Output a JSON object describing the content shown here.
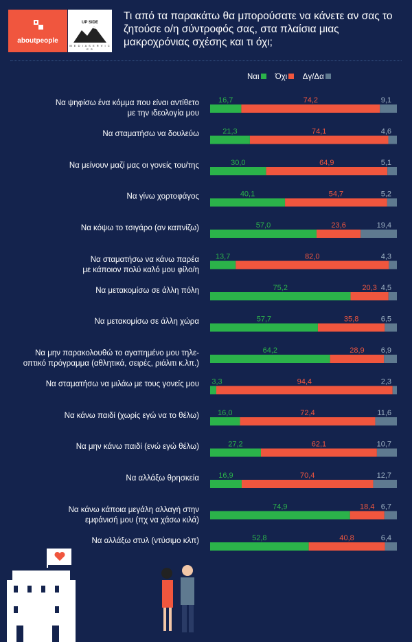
{
  "brand": {
    "about_part1": "about",
    "about_part2": "people",
    "partner_title": "UP SIDE",
    "partner_sub": "M E D I A   S E R V I C E S"
  },
  "title": "Τι από τα παρακάτω θα μπορούσατε να κάνετε αν σας το ζητούσε ο/η σύντροφός σας, στα πλαίσια μιας μακροχρόνιας σχέσης και τι όχι;",
  "colors": {
    "yes": "#2bb34a",
    "no": "#f0563e",
    "dk": "#5f7a90",
    "background": "#14234d"
  },
  "chart_data": {
    "type": "bar",
    "orientation": "horizontal",
    "stacked": true,
    "percent": true,
    "legend_position": "top-right",
    "series": [
      {
        "name": "Ναι",
        "values": [
          16.7,
          21.3,
          30.0,
          40.1,
          57.0,
          13.7,
          75.2,
          57.7,
          64.2,
          3.3,
          16.0,
          27.2,
          16.9,
          74.9,
          52.8
        ],
        "labels": [
          "16,7",
          "21,3",
          "30,0",
          "40,1",
          "57,0",
          "13,7",
          "75,2",
          "57,7",
          "64,2",
          "3,3",
          "16,0",
          "27,2",
          "16,9",
          "74,9",
          "52,8"
        ]
      },
      {
        "name": "Όχι",
        "values": [
          74.2,
          74.1,
          64.9,
          54.7,
          23.6,
          82.0,
          20.3,
          35.8,
          28.9,
          94.4,
          72.4,
          62.1,
          70.4,
          18.4,
          40.8
        ],
        "labels": [
          "74,2",
          "74,1",
          "64,9",
          "54,7",
          "23,6",
          "82,0",
          "20,3",
          "35,8",
          "28,9",
          "94,4",
          "72,4",
          "62,1",
          "70,4",
          "18,4",
          "40,8"
        ]
      },
      {
        "name": "Δγ/Δα",
        "values": [
          9.1,
          4.6,
          5.1,
          5.2,
          19.4,
          4.3,
          4.5,
          6.5,
          6.9,
          2.3,
          11.6,
          10.7,
          12.7,
          6.7,
          6.4
        ],
        "labels": [
          "9,1",
          "4,6",
          "5,1",
          "5,2",
          "19,4",
          "4,3",
          "4,5",
          "6,5",
          "6,9",
          "2,3",
          "11,6",
          "10,7",
          "12,7",
          "6,7",
          "6,4"
        ]
      }
    ],
    "categories": [
      [
        "Να ψηφίσω ένα κόμμα που είναι αντίθετο",
        "με την ιδεολογία μου"
      ],
      [
        "Να σταματήσω να δουλεύω"
      ],
      [
        "Να μείνουν μαζί μας οι γονείς του/της"
      ],
      [
        "Να γίνω χορτοφάγος"
      ],
      [
        "Να κόψω το τσιγάρο (αν καπνίζω)"
      ],
      [
        "Να σταματήσω να κάνω παρέα",
        "με κάποιον πολύ καλό μου φίλο/η"
      ],
      [
        "Να μετακομίσω σε άλλη πόλη"
      ],
      [
        "Να μετακομίσω σε άλλη χώρα"
      ],
      [
        "Να μην παρακολουθώ το αγαπημένο μου τηλε-",
        "οπτικό πρόγραμμα (αθλητικά, σειρές, ριάλιτι κ.λπ.)"
      ],
      [
        "Να σταματήσω να μιλάω με τους γονείς μου"
      ],
      [
        "Να κάνω παιδί (χωρίς εγώ να το θέλω)"
      ],
      [
        "Να μην κάνω παιδί (ενώ εγώ θέλω)"
      ],
      [
        "Να αλλάξω θρησκεία"
      ],
      [
        "Να κάνω κάποια μεγάλη αλλαγή στην",
        "εμφάνισή μου (πχ να χάσω κιλά)"
      ],
      [
        "Να αλλάξω στυλ (ντύσιμο κλπ)"
      ]
    ]
  }
}
